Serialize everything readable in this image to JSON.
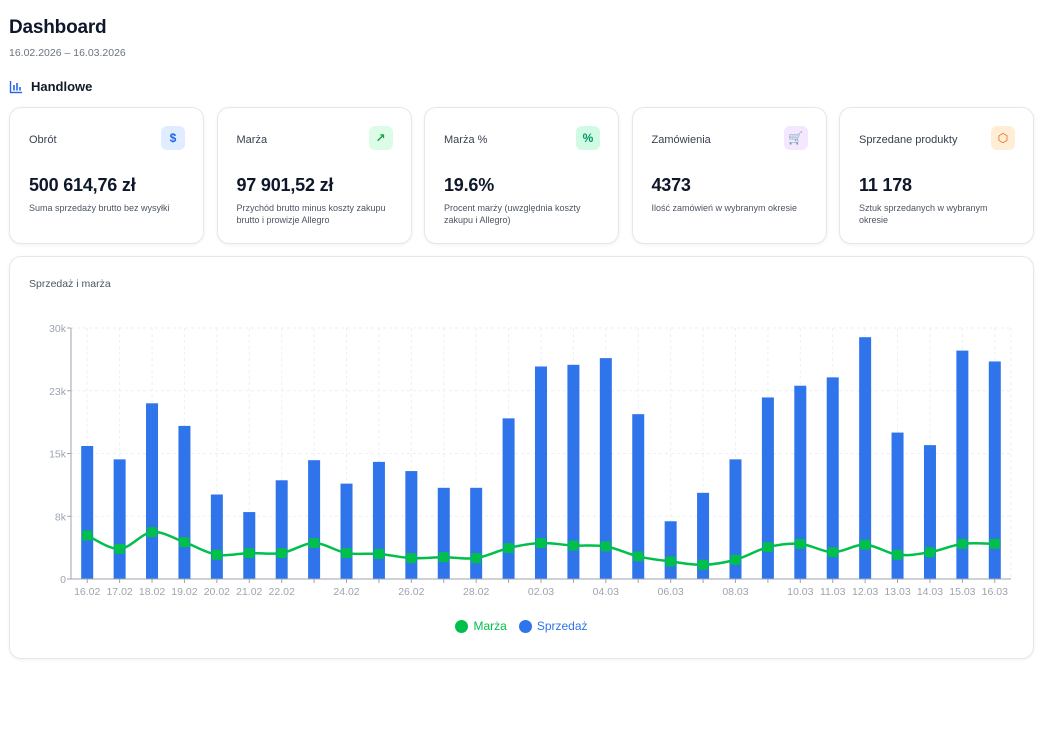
{
  "header": {
    "title": "Dashboard",
    "date_range": "16.02.2026 – 16.03.2026"
  },
  "section": {
    "title": "Handlowe",
    "icon": "bar-chart-icon"
  },
  "cards": [
    {
      "title": "Obrót",
      "value": "500 614,76 zł",
      "description": "Suma sprzedaży brutto bez wysyłki",
      "icon": "dollar-icon",
      "icon_glyph": "$",
      "icon_color": "#2563eb",
      "icon_bg": "#e0ecff"
    },
    {
      "title": "Marża",
      "value": "97 901,52 zł",
      "description": "Przychód brutto minus koszty zakupu brutto i prowizje Allegro",
      "icon": "trending-up-icon",
      "icon_glyph": "↗",
      "icon_color": "#16a34a",
      "icon_bg": "#dcfce7"
    },
    {
      "title": "Marża %",
      "value": "19.6%",
      "description": "Procent marży (uwzględnia koszty zakupu i Allegro)",
      "icon": "percent-icon",
      "icon_glyph": "%",
      "icon_color": "#059669",
      "icon_bg": "#d1fae5"
    },
    {
      "title": "Zamówienia",
      "value": "4373",
      "description": "Ilość zamówień w wybranym okresie",
      "icon": "cart-icon",
      "icon_glyph": "🛒",
      "icon_color": "#9333ea",
      "icon_bg": "#f3e8ff"
    },
    {
      "title": "Sprzedane produkty",
      "value": "11 178",
      "description": "Sztuk sprzedanych w wybranym okresie",
      "icon": "package-icon",
      "icon_glyph": "⬡",
      "icon_color": "#ea580c",
      "icon_bg": "#ffedd5"
    }
  ],
  "chart": {
    "title": "Sprzedaż i marża",
    "legend": [
      {
        "name": "Marża",
        "color": "#00c04b"
      },
      {
        "name": "Sprzedaż",
        "color": "#2f74eb"
      }
    ]
  },
  "chart_data": {
    "type": "bar",
    "title": "Sprzedaż i marża",
    "xlabel": "",
    "ylabel": "",
    "ylim": [
      0,
      30000
    ],
    "yticks": [
      0,
      7500,
      15000,
      22500,
      30000
    ],
    "ytick_labels": [
      "0",
      "8k",
      "15k",
      "23k",
      "30k"
    ],
    "grid": true,
    "legend_position": "bottom-center",
    "categories": [
      "16.02",
      "17.02",
      "18.02",
      "19.02",
      "20.02",
      "21.02",
      "22.02",
      "23.02",
      "24.02",
      "25.02",
      "26.02",
      "27.02",
      "28.02",
      "01.03",
      "02.03",
      "03.03",
      "04.03",
      "05.03",
      "06.03",
      "07.03",
      "08.03",
      "09.03",
      "10.03",
      "11.03",
      "12.03",
      "13.03",
      "14.03",
      "15.03",
      "16.03"
    ],
    "xtick_labels": [
      "16.02",
      "17.02",
      "18.02",
      "19.02",
      "20.02",
      "21.02",
      "22.02",
      "",
      "24.02",
      "",
      "26.02",
      "",
      "28.02",
      "",
      "02.03",
      "",
      "04.03",
      "",
      "06.03",
      "",
      "08.03",
      "",
      "10.03",
      "11.03",
      "12.03",
      "13.03",
      "14.03",
      "15.03",
      "16.03"
    ],
    "series": [
      {
        "name": "Sprzedaż",
        "type": "bar",
        "color": "#2f74eb",
        "values": [
          15900,
          14300,
          21000,
          18300,
          10100,
          8000,
          11800,
          14200,
          11400,
          14000,
          12900,
          10900,
          10900,
          19200,
          25400,
          25600,
          26400,
          19700,
          6900,
          10300,
          14300,
          21700,
          23100,
          24100,
          28900,
          17500,
          16000,
          27300,
          26000
        ]
      },
      {
        "name": "Marża",
        "type": "line",
        "color": "#00c04b",
        "values": [
          5200,
          3600,
          5600,
          4400,
          2900,
          3100,
          3100,
          4300,
          3100,
          3000,
          2500,
          2600,
          2500,
          3700,
          4300,
          4000,
          3900,
          2700,
          2100,
          1700,
          2300,
          3800,
          4200,
          3200,
          4100,
          2900,
          3200,
          4200,
          4200
        ]
      }
    ]
  }
}
